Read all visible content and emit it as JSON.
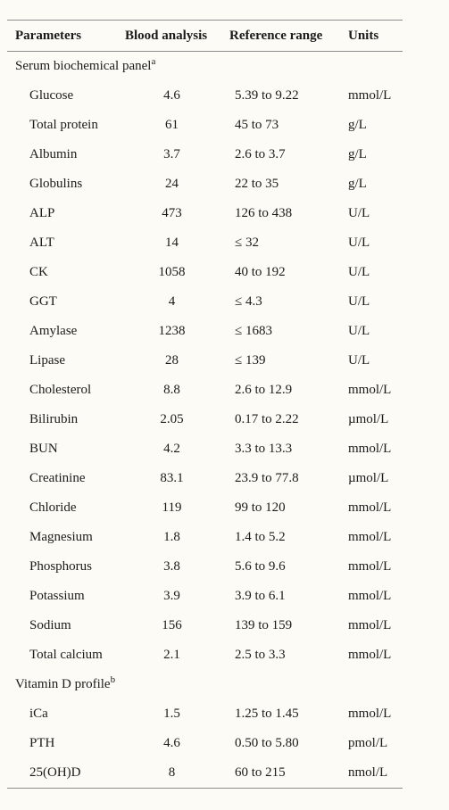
{
  "table": {
    "headers": {
      "parameters": "Parameters",
      "blood_analysis": "Blood analysis",
      "reference_range": "Reference range",
      "units": "Units"
    },
    "sections": [
      {
        "title": "Serum biochemical panel",
        "footnote": "a",
        "rows": [
          {
            "parameter": "Glucose",
            "value": "4.6",
            "range": "5.39 to 9.22",
            "unit": "mmol/L"
          },
          {
            "parameter": "Total protein",
            "value": "61",
            "range": "45 to 73",
            "unit": "g/L"
          },
          {
            "parameter": "Albumin",
            "value": "3.7",
            "range": "2.6 to 3.7",
            "unit": "g/L"
          },
          {
            "parameter": "Globulins",
            "value": "24",
            "range": "22 to 35",
            "unit": "g/L"
          },
          {
            "parameter": "ALP",
            "value": "473",
            "range": "126 to 438",
            "unit": "U/L"
          },
          {
            "parameter": "ALT",
            "value": "14",
            "range": "≤ 32",
            "unit": "U/L"
          },
          {
            "parameter": "CK",
            "value": "1058",
            "range": "40 to 192",
            "unit": "U/L"
          },
          {
            "parameter": "GGT",
            "value": "4",
            "range": "≤ 4.3",
            "unit": "U/L"
          },
          {
            "parameter": "Amylase",
            "value": "1238",
            "range": "≤ 1683",
            "unit": "U/L"
          },
          {
            "parameter": "Lipase",
            "value": "28",
            "range": "≤ 139",
            "unit": "U/L"
          },
          {
            "parameter": "Cholesterol",
            "value": "8.8",
            "range": "2.6 to 12.9",
            "unit": "mmol/L"
          },
          {
            "parameter": "Bilirubin",
            "value": "2.05",
            "range": "0.17 to 2.22",
            "unit": "µmol/L"
          },
          {
            "parameter": "BUN",
            "value": "4.2",
            "range": "3.3 to 13.3",
            "unit": "mmol/L"
          },
          {
            "parameter": "Creatinine",
            "value": "83.1",
            "range": "23.9 to 77.8",
            "unit": "µmol/L"
          },
          {
            "parameter": "Chloride",
            "value": "119",
            "range": "99 to 120",
            "unit": "mmol/L"
          },
          {
            "parameter": "Magnesium",
            "value": "1.8",
            "range": "1.4 to 5.2",
            "unit": "mmol/L"
          },
          {
            "parameter": "Phosphorus",
            "value": "3.8",
            "range": "5.6 to 9.6",
            "unit": "mmol/L"
          },
          {
            "parameter": "Potassium",
            "value": "3.9",
            "range": "3.9 to 6.1",
            "unit": "mmol/L"
          },
          {
            "parameter": "Sodium",
            "value": "156",
            "range": "139 to 159",
            "unit": "mmol/L"
          },
          {
            "parameter": "Total calcium",
            "value": "2.1",
            "range": "2.5 to 3.3",
            "unit": "mmol/L"
          }
        ]
      },
      {
        "title": "Vitamin D profile",
        "footnote": "b",
        "rows": [
          {
            "parameter": "iCa",
            "value": "1.5",
            "range": "1.25 to 1.45",
            "unit": "mmol/L"
          },
          {
            "parameter": "PTH",
            "value": "4.6",
            "range": "0.50 to 5.80",
            "unit": "pmol/L"
          },
          {
            "parameter": "25(OH)D",
            "value": "8",
            "range": "60 to 215",
            "unit": "nmol/L"
          }
        ]
      }
    ]
  }
}
